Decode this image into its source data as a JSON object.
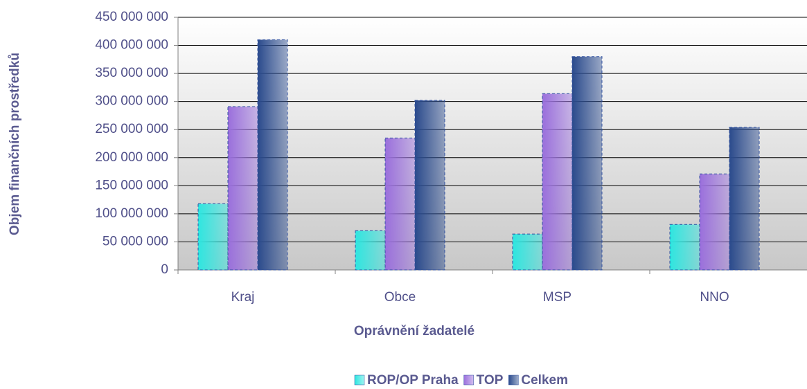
{
  "chart_data": {
    "type": "bar",
    "x_label": "Oprávnění žadatelé",
    "y_label": "Objem finančních prostředků",
    "categories": [
      "Kraj",
      "Obce",
      "MSP",
      "NNO"
    ],
    "series": [
      {
        "name": "ROP/OP Praha",
        "color": "#2ee6e0",
        "values": [
          118000000,
          70000000,
          64000000,
          81000000
        ]
      },
      {
        "name": "TOP",
        "color": "#9a6fdc",
        "values": [
          291000000,
          235000000,
          314000000,
          171000000
        ]
      },
      {
        "name": "Celkem",
        "color": "#2a4a8c",
        "values": [
          410000000,
          302000000,
          380000000,
          254000000
        ]
      }
    ],
    "ylim": [
      0,
      450000000
    ],
    "yticks": [
      0,
      {
        "value": 50000000,
        "label": "50 000 000"
      },
      {
        "value": 100000000,
        "label": "100 000 000"
      },
      {
        "value": 150000000,
        "label": "150 000 000"
      },
      {
        "value": 200000000,
        "label": "200 000 000"
      },
      {
        "value": 250000000,
        "label": "250 000 000"
      },
      {
        "value": 300000000,
        "label": "300 000 000"
      },
      {
        "value": 350000000,
        "label": "350 000 000"
      },
      {
        "value": 400000000,
        "label": "400 000 000"
      },
      {
        "value": 450000000,
        "label": "450 000 000"
      }
    ],
    "grid": true
  }
}
